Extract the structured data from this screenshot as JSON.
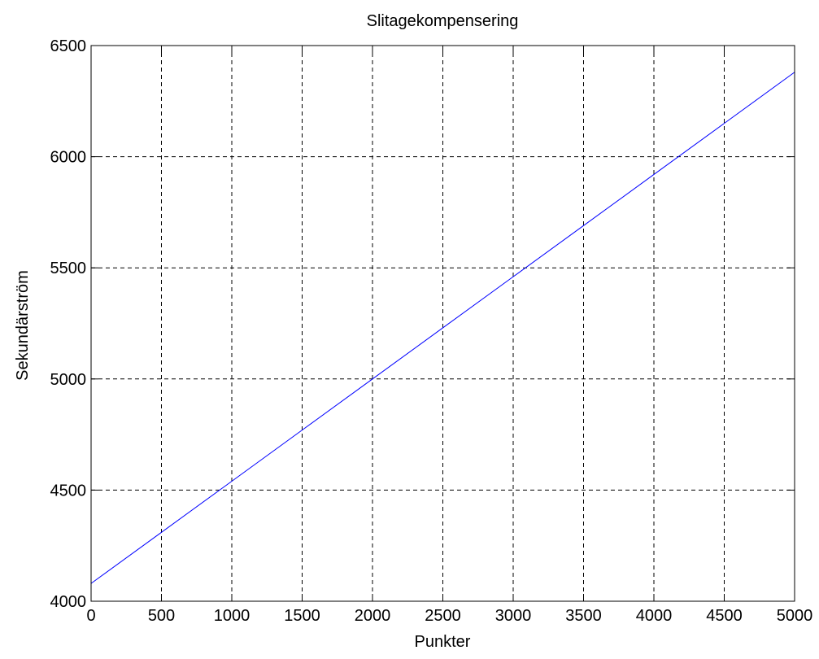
{
  "chart_data": {
    "type": "line",
    "title": "Slitagekompensering",
    "xlabel": "Punkter",
    "ylabel": "Sekundärström",
    "xlim": [
      0,
      5000
    ],
    "ylim": [
      4000,
      6500
    ],
    "xticks": [
      0,
      500,
      1000,
      1500,
      2000,
      2500,
      3000,
      3500,
      4000,
      4500,
      5000
    ],
    "yticks": [
      4000,
      4500,
      5000,
      5500,
      6000,
      6500
    ],
    "xtick_labels": [
      "0",
      "500",
      "1000",
      "1500",
      "2000",
      "2500",
      "3000",
      "3500",
      "4000",
      "4500",
      "5000"
    ],
    "ytick_labels": [
      "4000",
      "4500",
      "5000",
      "5500",
      "6000",
      "6500"
    ],
    "grid": true,
    "series": [
      {
        "x": [
          0,
          500,
          1000,
          1500,
          2000,
          2500,
          3000,
          3500,
          4000,
          4500,
          5000
        ],
        "y": [
          4080,
          4310,
          4540,
          4770,
          5000,
          5230,
          5460,
          5690,
          5920,
          6150,
          6380
        ],
        "color": "#0000ff"
      }
    ]
  }
}
